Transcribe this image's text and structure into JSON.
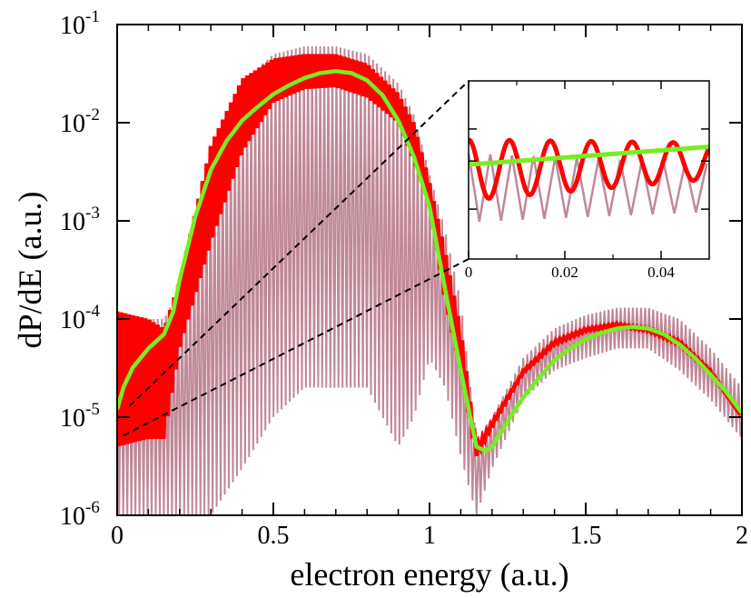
{
  "chart_data": [
    {
      "type": "line",
      "xlabel": "electron energy (a.u.)",
      "ylabel": "dP/dE (a.u.)",
      "xlim": [
        0,
        2
      ],
      "ylim": [
        1e-06,
        0.1
      ],
      "yscale": "log",
      "x_ticks": [
        0,
        0.5,
        1,
        1.5,
        2
      ],
      "x_tick_labels": [
        "0",
        "0.5",
        "1",
        "1.5",
        "2"
      ],
      "y_ticks": [
        1e-06,
        1e-05,
        0.0001,
        0.001,
        0.01,
        0.1
      ],
      "y_tick_labels": [
        {
          "base": "10",
          "exp": "-6"
        },
        {
          "base": "10",
          "exp": "-5"
        },
        {
          "base": "10",
          "exp": "-4"
        },
        {
          "base": "10",
          "exp": "-3"
        },
        {
          "base": "10",
          "exp": "-2"
        },
        {
          "base": "10",
          "exp": "-1"
        }
      ],
      "grid": false,
      "legend": "none",
      "series": [
        {
          "color": "#c08898",
          "style": "thin oscillating",
          "envelope_x": [
            0,
            0.1,
            0.15,
            0.2,
            0.3,
            0.4,
            0.5,
            0.6,
            0.7,
            0.8,
            0.9,
            0.95,
            1.0,
            1.05,
            1.1,
            1.15,
            1.2,
            1.3,
            1.4,
            1.5,
            1.6,
            1.7,
            1.8,
            1.9,
            2.0
          ],
          "envelope_max": [
            8e-05,
            0.0001,
            0.0001,
            0.0002,
            0.005,
            0.025,
            0.05,
            0.06,
            0.06,
            0.05,
            0.025,
            0.012,
            0.003,
            0.0008,
            0.00015,
            6e-06,
            1e-05,
            4e-05,
            8e-05,
            0.00011,
            0.00013,
            0.00013,
            0.0001,
            5e-05,
            2e-05
          ],
          "envelope_min": [
            1e-06,
            1e-06,
            1e-06,
            1e-06,
            1e-06,
            3e-06,
            1e-05,
            2e-05,
            2e-05,
            2e-05,
            5e-06,
            1e-05,
            4e-05,
            2e-05,
            4e-06,
            1e-06,
            3e-06,
            1.5e-05,
            3e-05,
            4e-05,
            5e-05,
            5e-05,
            3e-05,
            1.5e-05,
            6e-06
          ]
        },
        {
          "color": "#ff0000",
          "style": "thick oscillating",
          "envelope_x": [
            0,
            0.1,
            0.15,
            0.2,
            0.3,
            0.4,
            0.5,
            0.6,
            0.7,
            0.8,
            0.9,
            0.95,
            1.0,
            1.05,
            1.1,
            1.15,
            1.2,
            1.3,
            1.4,
            1.5,
            1.6,
            1.7,
            1.8,
            1.9,
            2.0
          ],
          "envelope_max": [
            0.00012,
            0.0001,
            8e-05,
            0.00025,
            0.006,
            0.028,
            0.045,
            0.05,
            0.05,
            0.04,
            0.02,
            0.01,
            0.0025,
            0.0005,
            8e-05,
            5e-06,
            9e-06,
            3e-05,
            6e-05,
            8e-05,
            9e-05,
            8e-05,
            6e-05,
            3e-05,
            1e-05
          ],
          "envelope_min": [
            5e-06,
            6e-06,
            6e-06,
            5e-05,
            0.0006,
            0.005,
            0.016,
            0.022,
            0.023,
            0.018,
            0.01,
            0.004,
            0.0015,
            0.00015,
            3e-05,
            4e-06,
            8e-06,
            2.8e-05,
            5.5e-05,
            7.5e-05,
            8.5e-05,
            7.5e-05,
            5.5e-05,
            2.8e-05,
            1e-05
          ]
        },
        {
          "color": "#77ee22",
          "style": "smooth thick",
          "x": [
            0,
            0.02,
            0.05,
            0.1,
            0.15,
            0.18,
            0.2,
            0.25,
            0.3,
            0.35,
            0.4,
            0.45,
            0.5,
            0.55,
            0.6,
            0.65,
            0.7,
            0.75,
            0.8,
            0.85,
            0.9,
            0.95,
            1.0,
            1.05,
            1.1,
            1.15,
            1.18,
            1.2,
            1.25,
            1.3,
            1.35,
            1.4,
            1.45,
            1.5,
            1.55,
            1.6,
            1.65,
            1.7,
            1.75,
            1.8,
            1.85,
            1.9,
            1.95,
            2.0
          ],
          "y": [
            1.2e-05,
            2e-05,
            3.2e-05,
            5e-05,
            7e-05,
            0.00012,
            0.00025,
            0.0011,
            0.0033,
            0.0065,
            0.0105,
            0.0145,
            0.0195,
            0.024,
            0.0285,
            0.032,
            0.0335,
            0.032,
            0.027,
            0.019,
            0.0105,
            0.0045,
            0.0014,
            0.0002,
            3e-05,
            5e-06,
            4.5e-06,
            5e-06,
            9e-06,
            1.6e-05,
            2.5e-05,
            3.8e-05,
            5e-05,
            6.2e-05,
            7.2e-05,
            8e-05,
            8.3e-05,
            8e-05,
            7e-05,
            5.5e-05,
            4e-05,
            2.7e-05,
            1.8e-05,
            1.1e-05
          ]
        }
      ]
    },
    {
      "type": "line",
      "role": "inset",
      "xlim": [
        0,
        0.05
      ],
      "x_ticks": [
        0,
        0.02,
        0.04
      ],
      "x_tick_labels": [
        "0",
        "0.02",
        "0.04"
      ],
      "series": [
        {
          "color": "#c08898",
          "style": "thin fast oscillation",
          "period": 0.0045,
          "center": [
            0.6,
            0.6
          ],
          "amplitude": 0.7
        },
        {
          "color": "#ff0000",
          "style": "thick oscillation",
          "period": 0.0085,
          "center": [
            0.35,
            0.4
          ],
          "amplitude": 0.45
        },
        {
          "color": "#77ee22",
          "style": "smooth",
          "x": [
            0,
            0.05
          ],
          "y_rel": [
            0.62,
            0.32
          ]
        }
      ]
    }
  ]
}
